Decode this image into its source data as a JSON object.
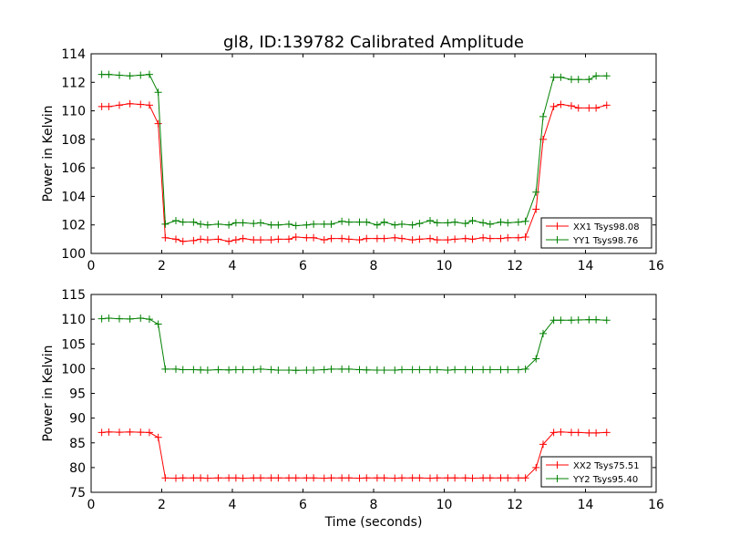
{
  "chart_data": [
    {
      "type": "line",
      "title": "gl8, ID:139782 Calibrated Amplitude",
      "xlabel": "",
      "ylabel": "Power in Kelvin",
      "xlim": [
        0,
        16
      ],
      "ylim": [
        100,
        114
      ],
      "xticks": [
        "0",
        "2",
        "4",
        "6",
        "8",
        "10",
        "12",
        "14",
        "16"
      ],
      "yticks": [
        "100",
        "102",
        "104",
        "106",
        "108",
        "110",
        "112",
        "114"
      ],
      "legend_position": "lower-right",
      "x": [
        0.3,
        0.5,
        0.8,
        1.1,
        1.4,
        1.65,
        1.9,
        2.1,
        2.4,
        2.6,
        2.9,
        3.1,
        3.3,
        3.6,
        3.9,
        4.1,
        4.3,
        4.6,
        4.8,
        5.1,
        5.3,
        5.6,
        5.8,
        6.1,
        6.3,
        6.6,
        6.8,
        7.1,
        7.3,
        7.6,
        7.8,
        8.1,
        8.3,
        8.6,
        8.8,
        9.1,
        9.3,
        9.6,
        9.8,
        10.1,
        10.3,
        10.6,
        10.8,
        11.1,
        11.3,
        11.6,
        11.8,
        12.1,
        12.3,
        12.6,
        12.8,
        13.1,
        13.3,
        13.6,
        13.8,
        14.1,
        14.3,
        14.6
      ],
      "series": [
        {
          "name": "XX1 Tsys98.08",
          "color": "#ff0000",
          "values": [
            110.3,
            110.3,
            110.4,
            110.5,
            110.45,
            110.4,
            109.1,
            101.1,
            101.0,
            100.85,
            100.9,
            101.0,
            100.95,
            101.0,
            100.85,
            100.95,
            101.05,
            100.95,
            100.95,
            100.95,
            101.0,
            101.0,
            101.15,
            101.1,
            101.1,
            100.95,
            101.05,
            101.05,
            101.0,
            100.95,
            101.05,
            101.05,
            101.05,
            101.1,
            101.05,
            100.95,
            101.0,
            101.05,
            100.95,
            100.95,
            101.0,
            101.05,
            101.0,
            101.1,
            101.05,
            101.05,
            101.1,
            101.1,
            101.15,
            103.1,
            108.0,
            110.3,
            110.45,
            110.35,
            110.2,
            110.2,
            110.2,
            110.4
          ]
        },
        {
          "name": "YY1 Tsys98.76",
          "color": "#008000",
          "values": [
            112.55,
            112.55,
            112.5,
            112.45,
            112.5,
            112.55,
            111.3,
            102.05,
            102.3,
            102.2,
            102.2,
            102.05,
            102.0,
            102.05,
            102.0,
            102.15,
            102.15,
            102.1,
            102.15,
            102.0,
            102.0,
            102.05,
            101.95,
            102.0,
            102.05,
            102.05,
            102.05,
            102.25,
            102.2,
            102.2,
            102.2,
            102.0,
            102.2,
            102.0,
            102.05,
            102.0,
            102.1,
            102.3,
            102.15,
            102.15,
            102.2,
            102.1,
            102.3,
            102.15,
            102.05,
            102.2,
            102.15,
            102.2,
            102.25,
            104.3,
            109.6,
            112.35,
            112.35,
            112.2,
            112.2,
            112.2,
            112.45,
            112.45
          ]
        }
      ]
    },
    {
      "type": "line",
      "title": "",
      "xlabel": "Time (seconds)",
      "ylabel": "Power in Kelvin",
      "xlim": [
        0,
        16
      ],
      "ylim": [
        75,
        115
      ],
      "xticks": [
        "0",
        "2",
        "4",
        "6",
        "8",
        "10",
        "12",
        "14",
        "16"
      ],
      "yticks": [
        "75",
        "80",
        "85",
        "90",
        "95",
        "100",
        "105",
        "110",
        "115"
      ],
      "legend_position": "lower-right",
      "x": [
        0.3,
        0.5,
        0.8,
        1.1,
        1.4,
        1.65,
        1.9,
        2.1,
        2.4,
        2.6,
        2.9,
        3.1,
        3.3,
        3.6,
        3.9,
        4.1,
        4.3,
        4.6,
        4.8,
        5.1,
        5.3,
        5.6,
        5.8,
        6.1,
        6.3,
        6.6,
        6.8,
        7.1,
        7.3,
        7.6,
        7.8,
        8.1,
        8.3,
        8.6,
        8.8,
        9.1,
        9.3,
        9.6,
        9.8,
        10.1,
        10.3,
        10.6,
        10.8,
        11.1,
        11.3,
        11.6,
        11.8,
        12.1,
        12.3,
        12.6,
        12.8,
        13.1,
        13.3,
        13.6,
        13.8,
        14.1,
        14.3,
        14.6
      ],
      "series": [
        {
          "name": "XX2 Tsys75.51",
          "color": "#ff0000",
          "values": [
            87.1,
            87.2,
            87.15,
            87.2,
            87.15,
            87.1,
            86.1,
            77.9,
            77.85,
            77.9,
            77.9,
            77.9,
            77.85,
            77.9,
            77.9,
            77.9,
            77.85,
            77.9,
            77.9,
            77.9,
            77.9,
            77.9,
            77.9,
            77.9,
            77.9,
            77.85,
            77.9,
            77.9,
            77.9,
            77.85,
            77.9,
            77.9,
            77.9,
            77.85,
            77.9,
            77.9,
            77.9,
            77.85,
            77.9,
            77.9,
            77.9,
            77.9,
            77.85,
            77.9,
            77.9,
            77.9,
            77.9,
            77.9,
            77.9,
            80.0,
            84.7,
            87.1,
            87.2,
            87.1,
            87.1,
            87.0,
            87.0,
            87.1
          ]
        },
        {
          "name": "YY2 Tsys95.40",
          "color": "#008000",
          "values": [
            110.1,
            110.2,
            110.1,
            110.05,
            110.2,
            110.0,
            109.0,
            99.9,
            99.9,
            99.8,
            99.8,
            99.75,
            99.7,
            99.8,
            99.75,
            99.8,
            99.8,
            99.8,
            99.9,
            99.8,
            99.7,
            99.7,
            99.65,
            99.7,
            99.7,
            99.8,
            99.9,
            99.9,
            99.9,
            99.8,
            99.75,
            99.7,
            99.7,
            99.7,
            99.8,
            99.8,
            99.8,
            99.8,
            99.8,
            99.7,
            99.8,
            99.8,
            99.8,
            99.8,
            99.8,
            99.8,
            99.8,
            99.8,
            99.9,
            102.0,
            107.1,
            109.8,
            109.8,
            109.8,
            109.85,
            109.9,
            109.9,
            109.8
          ]
        }
      ]
    }
  ]
}
